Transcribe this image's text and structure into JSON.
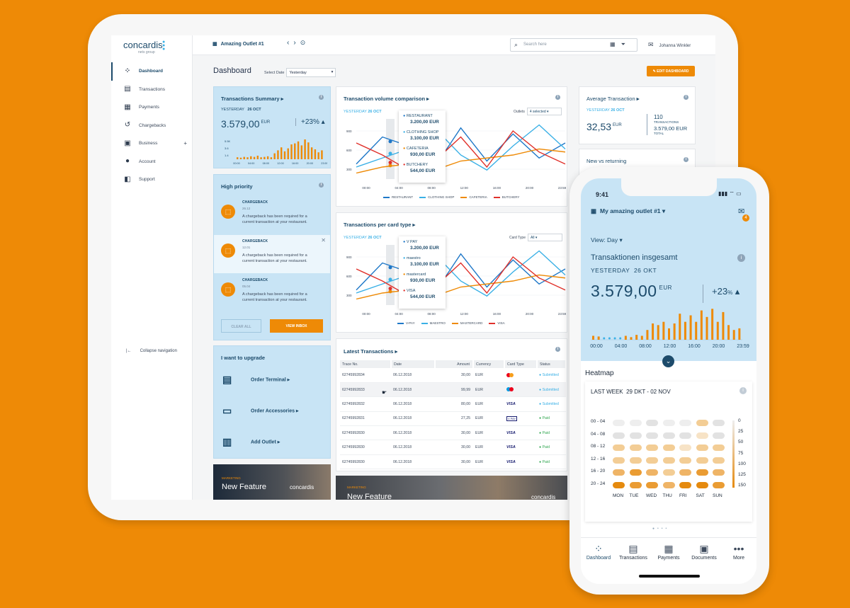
{
  "brand": {
    "name": "concardis",
    "sub": "nets group"
  },
  "sidebar": {
    "items": [
      {
        "label": "Dashboard",
        "icon": "grid-icon"
      },
      {
        "label": "Transactions",
        "icon": "transactions-icon"
      },
      {
        "label": "Payments",
        "icon": "payments-icon"
      },
      {
        "label": "Chargebacks",
        "icon": "chargebacks-icon"
      },
      {
        "label": "Business",
        "icon": "store-icon"
      },
      {
        "label": "Account",
        "icon": "user-icon"
      },
      {
        "label": "Support",
        "icon": "support-icon"
      }
    ],
    "collapse": "Collapse navigation"
  },
  "topbar": {
    "outlet": "Amazing Outlet #1",
    "search_placeholder": "Search here",
    "user": "Johanna Winkler"
  },
  "page": {
    "title": "Dashboard",
    "select_date_label": "Select Date",
    "select_date_value": "Yesterday",
    "edit_button": "EDIT DASHBOARD"
  },
  "tx_summary": {
    "title": "Transactions Summary",
    "yesterday": "YESTERDAY",
    "date": "26 OCT",
    "amount": "3.579,00",
    "currency": "EUR",
    "change": "+23%",
    "yticks": [
      "5.5K",
      "3.6",
      "1.4"
    ],
    "xticks": [
      "00:00",
      "04:00",
      "08:00",
      "12:00",
      "16:00",
      "20:00",
      "23:59"
    ],
    "bars": [
      0.1,
      0.08,
      0.12,
      0.1,
      0.15,
      0.12,
      0.18,
      0.1,
      0.12,
      0.15,
      0.1,
      0.3,
      0.45,
      0.6,
      0.4,
      0.55,
      0.75,
      0.8,
      0.9,
      0.7,
      1.0,
      0.85,
      0.6,
      0.5,
      0.35,
      0.45
    ]
  },
  "high_priority": {
    "title": "High priority",
    "items": [
      {
        "type": "CHARGEBACK",
        "date": "26.12",
        "text": "A chargeback has been required for a current transaction at your restaurant."
      },
      {
        "type": "CHARGEBACK",
        "date": "12.01",
        "text": "A chargeback has been required for a current transaction at your restaurant."
      },
      {
        "type": "CHARGEBACK",
        "date": "05.04",
        "text": "A chargeback has been required for a current transaction at your restaurant."
      }
    ],
    "clear": "CLEAR ALL",
    "view": "VIEW INBOX"
  },
  "upgrade": {
    "title": "I want to upgrade",
    "items": [
      "Order Terminal",
      "Order Accessories",
      "Add Outlet"
    ]
  },
  "marketing": {
    "tag": "MARKETING",
    "title": "New Feature",
    "brand": "concardis"
  },
  "volume": {
    "title": "Transaction volume comparison",
    "yesterday": "YESTERDAY",
    "date": "26 OCT",
    "outlets_label": "Outlets",
    "outlets_value": "4 selected",
    "yticks": [
      "900",
      "600",
      "300"
    ],
    "xticks": [
      "00:00",
      "04:00",
      "08:00",
      "12:00",
      "16:00",
      "20:00",
      "23:59"
    ],
    "tooltip": [
      {
        "name": "RESTAURANT",
        "value": "3.200,00 EUR",
        "color": "#1f78c8"
      },
      {
        "name": "CLOTHING SHOP",
        "value": "3.100,00 EUR",
        "color": "#3ab0e6"
      },
      {
        "name": "CAFETERIA",
        "value": "930,00 EUR",
        "color": "#ee8a06"
      },
      {
        "name": "BUTCHERY",
        "value": "544,00 EUR",
        "color": "#e0312b"
      }
    ],
    "legend": [
      "RESTAURANT",
      "CLOTHING SHOP",
      "CAFETERIA",
      "BUTCHERY"
    ]
  },
  "cardtype": {
    "title": "Transactions per card type",
    "yesterday": "YESTERDAY",
    "date": "26 OCT",
    "label": "Card Type",
    "value": "All",
    "yticks": [
      "900",
      "600",
      "300"
    ],
    "xticks": [
      "00:00",
      "04:00",
      "08:00",
      "12:00",
      "16:00",
      "20:00",
      "23:59"
    ],
    "tooltip": [
      {
        "name": "V PAY",
        "value": "3.200,00 EUR",
        "color": "#1f78c8"
      },
      {
        "name": "maestro",
        "value": "3.100,00 EUR",
        "color": "#3ab0e6"
      },
      {
        "name": "mastercard",
        "value": "930,00 EUR",
        "color": "#ee8a06"
      },
      {
        "name": "VISA",
        "value": "544,00 EUR",
        "color": "#e0312b"
      }
    ],
    "legend": [
      "V-PAY",
      "MAESTRO",
      "MASTERCARD",
      "VISA"
    ]
  },
  "latest": {
    "title": "Latest Transactions",
    "columns": [
      "Trace No.",
      "Date",
      "Amount",
      "Currency",
      "Card Type",
      "Status"
    ],
    "rows": [
      {
        "trace": "62745992834",
        "date": "06.12.2018",
        "amount": "30,00",
        "cur": "EUR",
        "card": "mastercard",
        "status": "Submitted"
      },
      {
        "trace": "62745992833",
        "date": "06.12.2018",
        "amount": "99,99",
        "cur": "EUR",
        "card": "maestro",
        "status": "Submitted"
      },
      {
        "trace": "62745992832",
        "date": "06.12.2018",
        "amount": "80,00",
        "cur": "EUR",
        "card": "VISA",
        "status": "Submitted"
      },
      {
        "trace": "62745992831",
        "date": "06.12.2018",
        "amount": "27,25",
        "cur": "EUR",
        "card": "V PAY",
        "status": "Paid"
      },
      {
        "trace": "62745992830",
        "date": "06.12.2018",
        "amount": "30,00",
        "cur": "EUR",
        "card": "VISA",
        "status": "Paid"
      },
      {
        "trace": "62745992830",
        "date": "06.12.2018",
        "amount": "30,00",
        "cur": "EUR",
        "card": "VISA",
        "status": "Paid"
      },
      {
        "trace": "62745992830",
        "date": "06.12.2018",
        "amount": "30,00",
        "cur": "EUR",
        "card": "VISA",
        "status": "Paid"
      }
    ]
  },
  "avg": {
    "title": "Average Transaction",
    "yesterday": "YESTERDAY",
    "date": "26 OCT",
    "amount": "32,53",
    "currency": "EUR",
    "count": "110",
    "count_label": "TRANSACTIONS",
    "total": "3.579,00 EUR",
    "total_label": "TOTAL"
  },
  "newret": {
    "title": "New vs returning"
  },
  "phone": {
    "time": "9:41",
    "outlet": "My amazing outlet #1",
    "badge": "4",
    "view": "View: Day",
    "title": "Transaktionen insgesamt",
    "yesterday": "YESTERDAY",
    "date": "26 OKT",
    "amount": "3.579,00",
    "currency": "EUR",
    "change": "+23",
    "change_unit": "%",
    "xticks": [
      "00:00",
      "04:00",
      "08:00",
      "12:00",
      "16:00",
      "20:00",
      "23:59"
    ],
    "bars": [
      0.12,
      0.1,
      0.05,
      0.05,
      0.05,
      0.05,
      0.12,
      0.08,
      0.15,
      0.12,
      0.3,
      0.5,
      0.45,
      0.55,
      0.35,
      0.5,
      0.8,
      0.55,
      0.75,
      0.55,
      0.9,
      0.7,
      0.95,
      0.55,
      0.85,
      0.45,
      0.3,
      0.35
    ],
    "heatmap": {
      "title": "Heatmap",
      "range_label": "LAST WEEK",
      "range": "29 DKT - 02 NOV",
      "rows": [
        "00 - 04",
        "04 - 08",
        "08 - 12",
        "12 - 16",
        "16 - 20",
        "20 - 24"
      ],
      "days": [
        "MON",
        "TUE",
        "WED",
        "THU",
        "FRI",
        "SAT",
        "SUN"
      ],
      "scale": [
        "0",
        "25",
        "50",
        "75",
        "100",
        "125",
        "150"
      ],
      "values": [
        [
          10,
          5,
          20,
          10,
          10,
          60,
          25
        ],
        [
          15,
          15,
          15,
          15,
          15,
          40,
          15
        ],
        [
          60,
          60,
          60,
          60,
          45,
          60,
          60
        ],
        [
          75,
          75,
          75,
          75,
          75,
          75,
          60
        ],
        [
          100,
          125,
          100,
          75,
          100,
          125,
          100
        ],
        [
          150,
          125,
          125,
          100,
          150,
          150,
          125
        ]
      ]
    },
    "nav": [
      "Dashboard",
      "Transactions",
      "Payments",
      "Documents",
      "More"
    ]
  }
}
